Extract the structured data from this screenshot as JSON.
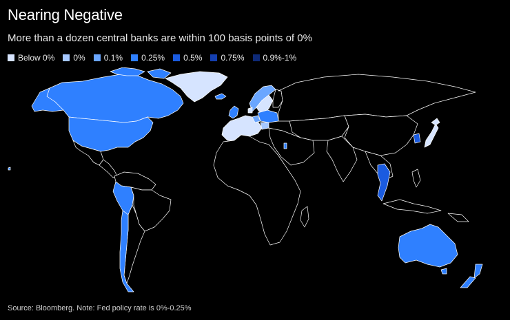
{
  "title": "Nearing Negative",
  "subtitle": "More than a dozen central banks are within 100 basis points of 0%",
  "legend": [
    {
      "label": "Below 0%",
      "color": "#d6e4ff"
    },
    {
      "label": "0%",
      "color": "#a6c8ff"
    },
    {
      "label": "0.1%",
      "color": "#6aa6ff"
    },
    {
      "label": "0.25%",
      "color": "#2f80ff"
    },
    {
      "label": "0.5%",
      "color": "#1a5be0"
    },
    {
      "label": "0.75%",
      "color": "#143fb0"
    },
    {
      "label": "0.9%-1%",
      "color": "#0e2a78"
    }
  ],
  "source": "Source: Bloomberg. Note: Fed policy rate is 0%-0.25%",
  "colors": {
    "background": "#000000",
    "border": "#ffffff",
    "no_data": "#000000"
  }
}
